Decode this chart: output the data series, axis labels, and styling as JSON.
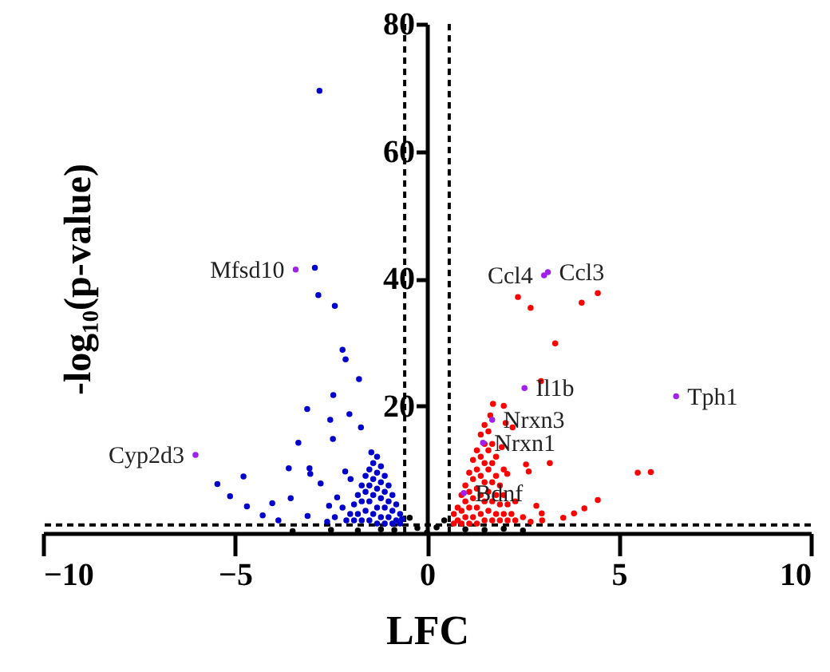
{
  "chart_data": {
    "type": "scatter",
    "xlabel": "LFC",
    "ylabel": "-log₁₀(p-value)",
    "xlim": [
      -10,
      10
    ],
    "xticks": [
      -10,
      -5,
      0,
      5,
      10
    ],
    "ylim": [
      0,
      80
    ],
    "yticks": [
      20,
      40,
      60,
      80
    ],
    "grid": false,
    "marker": "circle",
    "series": [
      {
        "color": "#0000cc",
        "x": [
          -2.92,
          -2.83,
          -2.4,
          -2.2,
          -2.12,
          -1.77,
          -2.44,
          -3.12,
          -2.02,
          -2.52,
          -1.72,
          -2.45,
          -3.35,
          -3.6,
          -3.06,
          -4.78,
          -5.46,
          -5.13,
          -4.69,
          -4.03,
          -3.55,
          -2.77,
          -3.04,
          -2.13,
          -1.99,
          -4.28,
          -3.87,
          -3.11,
          -2.55,
          -2.34,
          -2.8,
          -0.7,
          -0.7,
          -0.8,
          -0.8,
          -0.9,
          -0.9,
          -0.9,
          -1.0,
          -1.0,
          -1.0,
          -1.1,
          -1.1,
          -1.1,
          -1.1,
          -1.2,
          -1.2,
          -1.2,
          -1.2,
          -1.3,
          -1.3,
          -1.3,
          -1.3,
          -1.3,
          -1.4,
          -1.4,
          -1.4,
          -1.4,
          -1.45,
          -1.5,
          -1.5,
          -1.5,
          -1.5,
          -1.6,
          -1.6,
          -1.6,
          -1.7,
          -1.7,
          -1.7,
          -1.8,
          -1.8,
          -1.9,
          -1.9,
          -2.0,
          -2.1,
          -2.2,
          -2.4,
          -2.6,
          -0.65
        ],
        "values": [
          41.7,
          37.4,
          35.7,
          28.8,
          27.3,
          24.2,
          21.7,
          19.5,
          18.7,
          17.8,
          16.6,
          14.8,
          14.2,
          10.2,
          10.2,
          8.9,
          7.7,
          5.8,
          4.2,
          4.7,
          5.5,
          7.8,
          9.3,
          9.7,
          8.5,
          2.8,
          2.0,
          2.7,
          4.3,
          5.6,
          69.5,
          1.5,
          3,
          2,
          4.5,
          1.5,
          3.5,
          6,
          2.5,
          5,
          7.5,
          1.5,
          4,
          6.5,
          9,
          2.5,
          5.5,
          8,
          10.5,
          1.5,
          4,
          7,
          9.5,
          12,
          3,
          6,
          8.5,
          11,
          12.7,
          2,
          5,
          7.5,
          10,
          3.5,
          6.5,
          9,
          2,
          5,
          7.5,
          3,
          6,
          2,
          4.5,
          3,
          2,
          4,
          2.5,
          1.8,
          2.2
        ]
      },
      {
        "color": "#ff0000",
        "x": [
          2.37,
          2.7,
          4.03,
          4.45,
          3.34,
          2.97,
          1.72,
          2.0,
          2.23,
          2.05,
          1.95,
          3.2,
          2.58,
          5.49,
          5.83,
          2.65,
          2.09,
          4.45,
          4.1,
          3.83,
          3.55,
          2.99,
          2.85,
          0.7,
          0.7,
          0.8,
          0.8,
          0.9,
          0.9,
          0.9,
          1.0,
          1.0,
          1.0,
          1.1,
          1.1,
          1.1,
          1.1,
          1.2,
          1.2,
          1.2,
          1.2,
          1.3,
          1.3,
          1.3,
          1.3,
          1.3,
          1.4,
          1.4,
          1.4,
          1.4,
          1.4,
          1.5,
          1.5,
          1.5,
          1.5,
          1.5,
          1.5,
          1.6,
          1.6,
          1.6,
          1.6,
          1.6,
          1.65,
          1.7,
          1.7,
          1.7,
          1.7,
          1.7,
          1.8,
          1.8,
          1.8,
          1.8,
          1.9,
          1.9,
          1.9,
          2.0,
          2.0,
          2.0,
          2.1,
          2.1,
          2.2,
          2.3,
          2.3,
          2.5,
          2.7,
          3.0
        ],
        "values": [
          37.1,
          35.4,
          36.2,
          37.7,
          29.8,
          23.9,
          20.3,
          20,
          16.6,
          17.3,
          13.5,
          11,
          10.8,
          9.5,
          9.6,
          9.7,
          9.3,
          5.2,
          3.9,
          3.1,
          2.4,
          3.1,
          4.3,
          1.5,
          3,
          2,
          4,
          1.5,
          3.5,
          6,
          2.5,
          5,
          7.5,
          1.5,
          4,
          6.5,
          9.5,
          2.5,
          5.5,
          8.5,
          11.5,
          1.5,
          4,
          7,
          10,
          13,
          3,
          6,
          9,
          12,
          15.5,
          2,
          5,
          8,
          11,
          14,
          17,
          3.5,
          6.5,
          10,
          13,
          16,
          18.5,
          2,
          5,
          8,
          11,
          14,
          3,
          6,
          9,
          12,
          2,
          4.5,
          7.5,
          3,
          6,
          10,
          2,
          4.5,
          3,
          2,
          5,
          2.5,
          1.8,
          2.0
        ]
      },
      {
        "color": "#000000",
        "x": [
          -3.5,
          -2.5,
          -1.8,
          -1.2,
          -0.85,
          -0.45,
          -0.25,
          0,
          0.25,
          0.45,
          1.0,
          1.5,
          2.0,
          2.5
        ],
        "values": [
          0.3,
          0.5,
          0.4,
          0.6,
          0.5,
          2.4,
          0.8,
          0.1,
          0.9,
          2.0,
          0.6,
          0.5,
          0.7,
          0.4
        ]
      },
      {
        "color": "#a020f0",
        "x": [
          -3.42,
          -6.03,
          3.05,
          3.15,
          2.54,
          6.49,
          1.7,
          1.46,
          0.96
        ],
        "values": [
          41.4,
          12.3,
          40.5,
          41,
          22.8,
          21.5,
          17.8,
          14.2,
          6.3
        ]
      }
    ],
    "ref_lines": [
      {
        "axis": "y",
        "value": 1.3,
        "line_style": "dashed",
        "color": "#000000"
      },
      {
        "axis": "x",
        "value": -0.58,
        "line_style": "dashed",
        "color": "#000000"
      },
      {
        "axis": "x",
        "value": 0.58,
        "line_style": "dashed",
        "color": "#000000"
      }
    ],
    "annotations": [
      {
        "text": "Mfsd10",
        "x": -3.42,
        "y": 41.4
      },
      {
        "text": "Cyp2d3",
        "x": -6.03,
        "y": 12.3
      },
      {
        "text": "Ccl4",
        "x": 3.05,
        "y": 40.5
      },
      {
        "text": "Ccl3",
        "x": 3.15,
        "y": 41
      },
      {
        "text": "Il1b",
        "x": 2.54,
        "y": 22.8
      },
      {
        "text": "Tph1",
        "x": 6.49,
        "y": 21.5
      },
      {
        "text": "Nrxn3",
        "x": 1.7,
        "y": 17.8
      },
      {
        "text": "Nrxn1",
        "x": 1.46,
        "y": 14.2
      },
      {
        "text": "Bdnf",
        "x": 0.96,
        "y": 6.3
      }
    ]
  }
}
